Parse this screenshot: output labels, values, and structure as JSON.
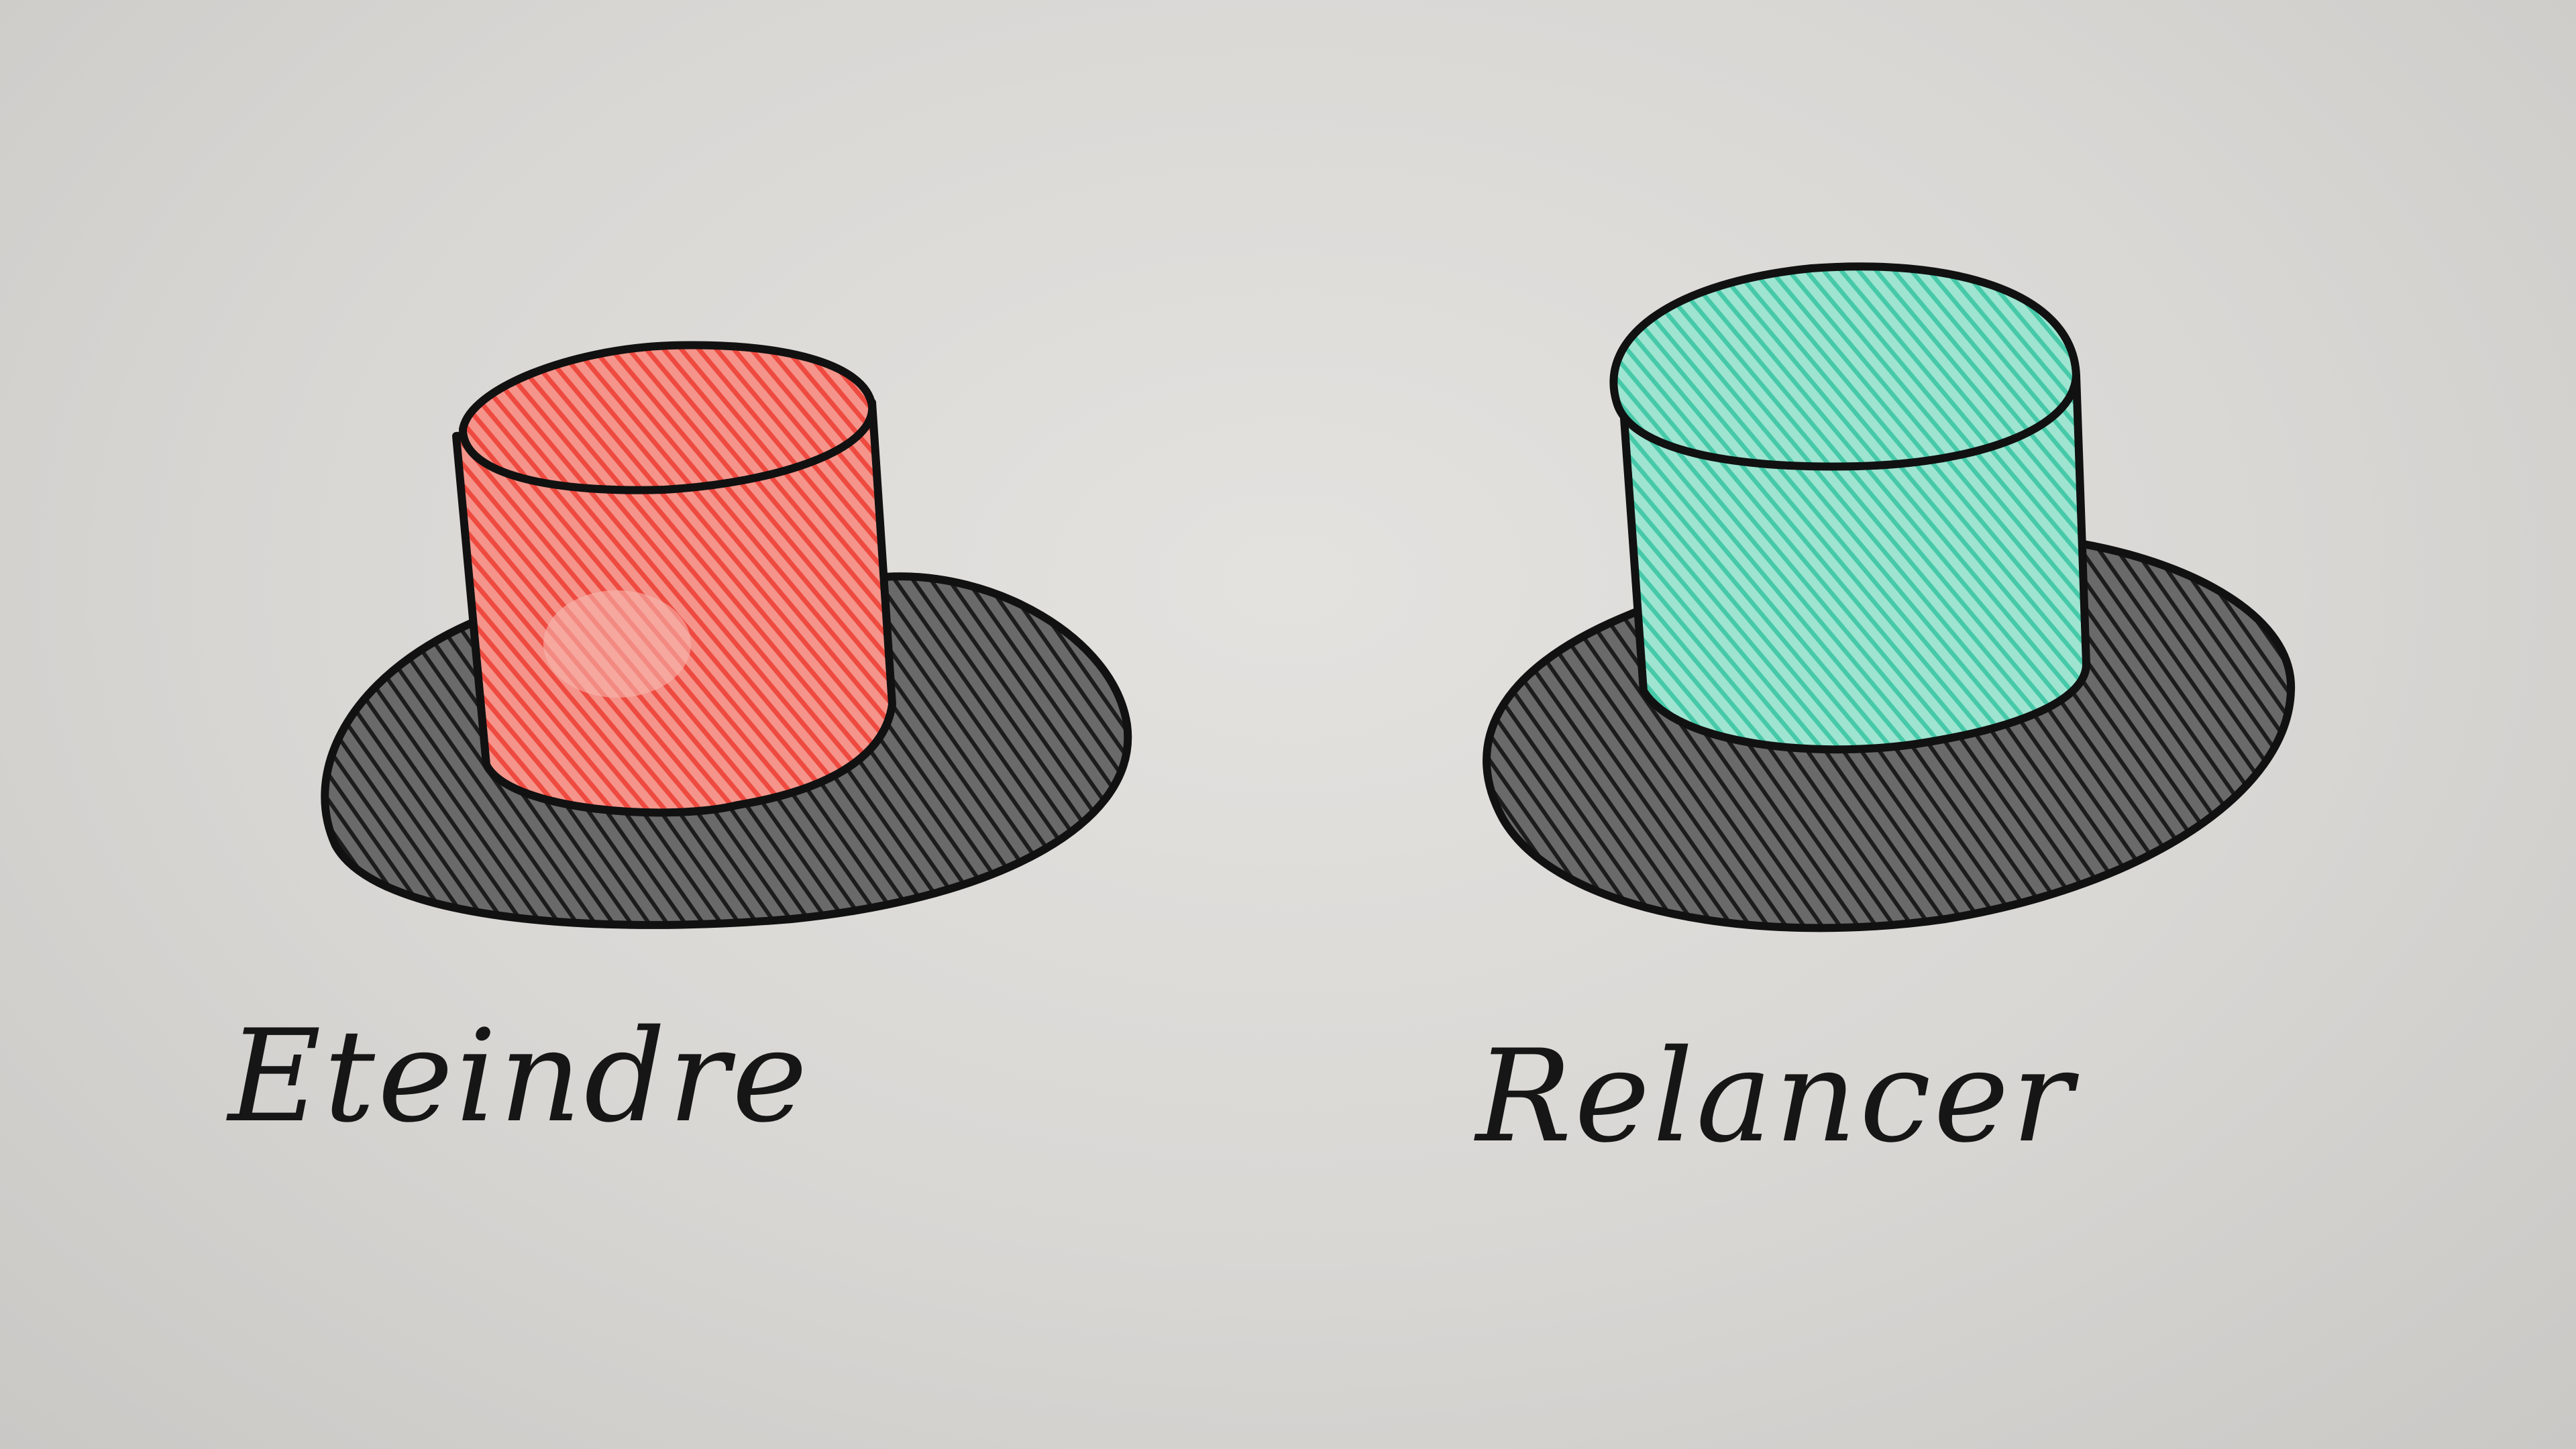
{
  "scene": {
    "background_color": "#dcdad7",
    "buttons": [
      {
        "id": "left",
        "label": "Eteindre",
        "top_color": "#f0564c",
        "brim_color": "#3a3a3a",
        "icon": "red-cylinder-button"
      },
      {
        "id": "right",
        "label": "Relancer",
        "top_color": "#4fd0b0",
        "brim_color": "#3a3a3a",
        "icon": "teal-cylinder-button"
      }
    ]
  }
}
